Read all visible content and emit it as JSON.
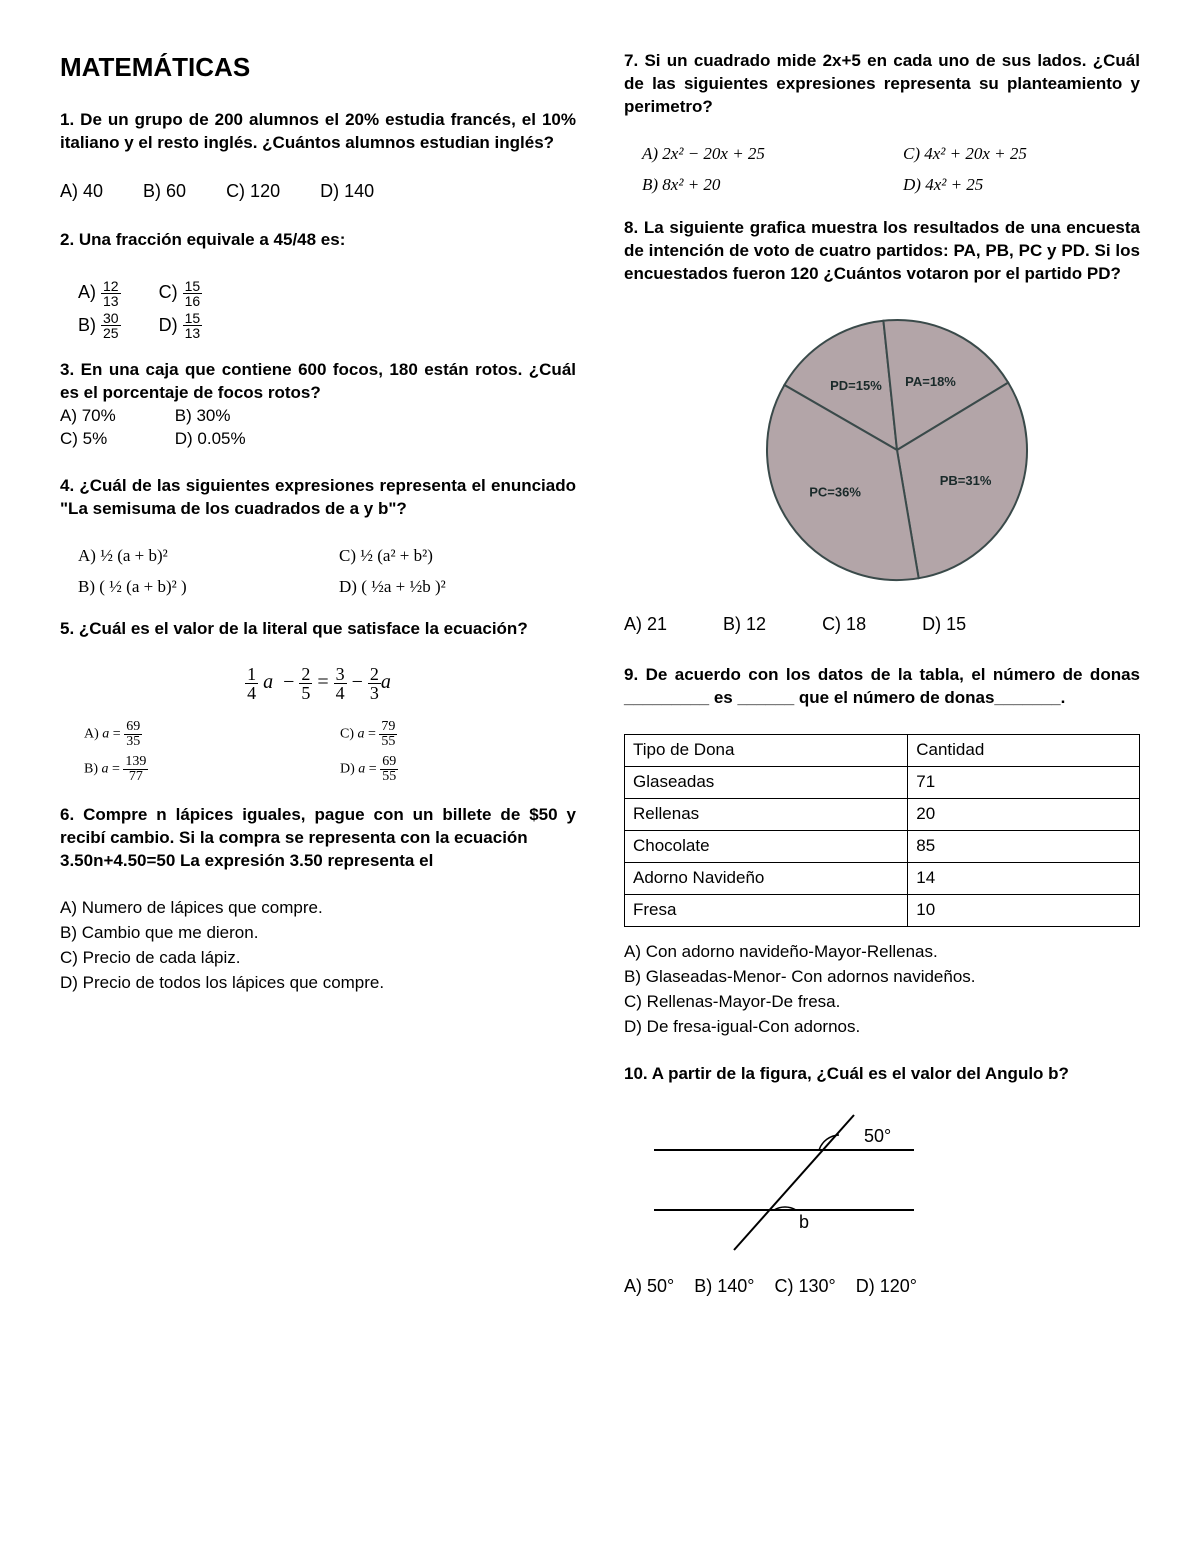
{
  "title": "MATEMÁTICAS",
  "q1": {
    "prompt": "1. De un grupo de 200 alumnos el 20% estudia francés, el 10% italiano y el resto inglés. ¿Cuántos alumnos estudian inglés?",
    "a": "A) 40",
    "b": "B) 60",
    "c": "C) 120",
    "d": "D) 140"
  },
  "q2": {
    "prompt": "2. Una fracción equivale a 45/48 es:",
    "a_n": "12",
    "a_d": "13",
    "b_n": "30",
    "b_d": "25",
    "c_n": "15",
    "c_d": "16",
    "d_n": "15",
    "d_d": "13"
  },
  "q3": {
    "prompt": "3. En una caja que contiene 600 focos, 180 están rotos. ¿Cuál es el porcentaje de focos rotos?",
    "a": "A) 70%",
    "b": "B) 30%",
    "c": "C) 5%",
    "d": "D) 0.05%"
  },
  "q4": {
    "prompt": "4. ¿Cuál de las siguientes expresiones representa el enunciado \"La semisuma de los cuadrados de a y b\"?",
    "a": "A) ½ (a + b)²",
    "b": "B) ( ½ (a + b)² )",
    "c": "C) ½ (a² + b²)",
    "d": "D) ( ½a + ½b )²"
  },
  "q5": {
    "prompt": "5. ¿Cuál es el valor de la literal que satisface la ecuación?",
    "a_n": "69",
    "a_d": "35",
    "b_n": "139",
    "b_d": "77",
    "c_n": "79",
    "c_d": "55",
    "d_n": "69",
    "d_d": "55"
  },
  "q6": {
    "prompt": "6. Compre n lápices iguales, pague con un billete de $50 y recibí cambio. Si la compra se representa con la ecuación",
    "prompt2": "3.50n+4.50=50   La   expresión   3.50 representa el",
    "a": "A) Numero de lápices que compre.",
    "b": "B) Cambio que me dieron.",
    "c": "C) Precio de cada lápiz.",
    "d": "D) Precio de todos los lápices que compre."
  },
  "q7": {
    "prompt": "7. Si un cuadrado mide 2x+5 en cada uno de sus lados. ¿Cuál de las siguientes expresiones representa su planteamiento y perimetro?",
    "a": "A) 2x² − 20x + 25",
    "b": "B) 8x² + 20",
    "c": "C) 4x² + 20x + 25",
    "d": "D) 4x² + 25"
  },
  "q8": {
    "prompt": "8. La siguiente grafica muestra los resultados de una encuesta de intención de voto de cuatro partidos: PA, PB, PC y PD. Si los encuestados fueron 120 ¿Cuántos votaron por el partido PD?",
    "pie": {
      "type": "pie",
      "slices": [
        {
          "label": "PD=15%",
          "value": 15,
          "color": "#b3a5a8"
        },
        {
          "label": "PA=18%",
          "value": 18,
          "color": "#b3a5a8"
        },
        {
          "label": "PB=31%",
          "value": 31,
          "color": "#b3a5a8"
        },
        {
          "label": "PC=36%",
          "value": 36,
          "color": "#b3a5a8"
        }
      ],
      "stroke": "#3a4a4a",
      "stroke_width": 2,
      "label_font": "bold 13px Arial",
      "diameter": 260
    },
    "a": "A) 21",
    "b": "B) 12",
    "c": "C) 18",
    "d": "D) 15"
  },
  "q9": {
    "prompt": "9. De acuerdo con los datos de la tabla, el número de donas _________ es ______ que el número de donas_______.",
    "headers": [
      "Tipo de Dona",
      "Cantidad"
    ],
    "rows": [
      [
        "Glaseadas",
        "71"
      ],
      [
        "Rellenas",
        "20"
      ],
      [
        "Chocolate",
        "85"
      ],
      [
        "Adorno Navideño",
        "14"
      ],
      [
        "Fresa",
        "10"
      ]
    ],
    "a": "A) Con adorno navideño-Mayor-Rellenas.",
    "b": "B) Glaseadas-Menor- Con adornos navideños.",
    "c": "C) Rellenas-Mayor-De fresa.",
    "d": "D) De fresa-igual-Con adornos."
  },
  "q10": {
    "prompt": "10. A partir de la figura, ¿Cuál es el valor del Angulo b?",
    "angle_label": "50°",
    "b_label": "b",
    "a": "A) 50°",
    "b": "B) 140°",
    "c": "C) 130°",
    "d": "D) 120°"
  }
}
